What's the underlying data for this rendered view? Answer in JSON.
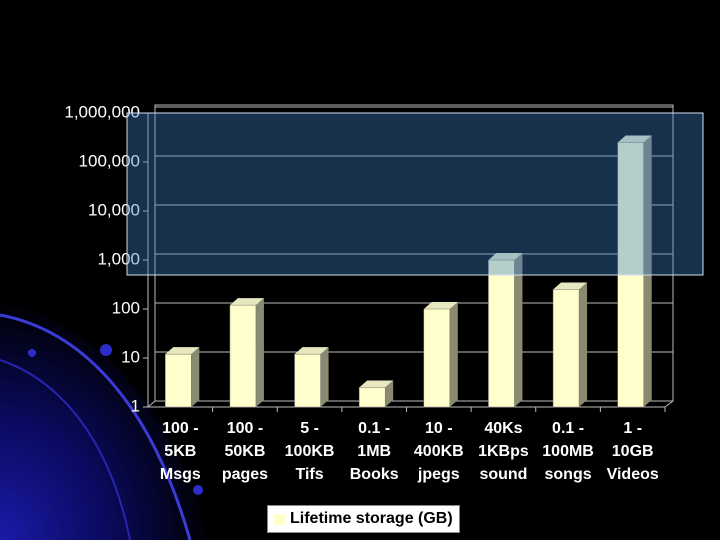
{
  "chart_data": {
    "type": "bar",
    "categories": [
      "100 -\n5KB\nMsgs",
      "100 -\n50KB\npages",
      "5 -\n100KB\nTifs",
      "0.1 -\n1MB\nBooks",
      "10 -\n400KB\njpegs",
      "40Ks\n1KBps\nsound",
      "0.1 -\n100MB\nsongs",
      "1 -\n10GB\nVideos"
    ],
    "series": [
      {
        "name": "Lifetime storage (GB)",
        "color": "#ffffcc",
        "values": [
          12,
          120,
          12,
          2.5,
          100,
          1000,
          250,
          250000
        ]
      }
    ],
    "ylim": [
      1,
      1000000
    ],
    "yticks": [
      1,
      10,
      100,
      {
        "value": 1000,
        "label": "1,000"
      },
      {
        "value": 10000,
        "label": "10,000"
      },
      {
        "value": 100000,
        "label": "100,000"
      },
      {
        "value": 1000000,
        "label": "1,000,000"
      }
    ],
    "log_scale": true,
    "grid": true
  }
}
